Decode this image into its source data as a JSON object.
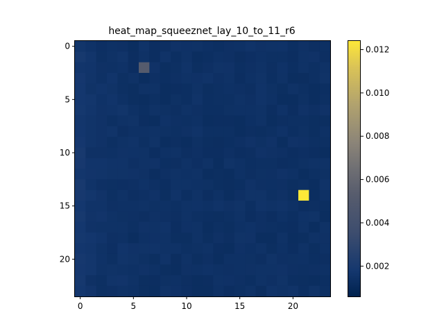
{
  "chart_data": {
    "type": "heatmap",
    "title": "heat_map_squeeznet_lay_10_to_11_r6",
    "xlabel": "",
    "ylabel": "",
    "rows": 24,
    "cols": 24,
    "x_ticks": [
      0,
      5,
      10,
      15,
      20
    ],
    "y_ticks": [
      0,
      5,
      10,
      15,
      20
    ],
    "colormap": "cividis",
    "colorbar": {
      "min": 0.0006,
      "max": 0.0124,
      "ticks": [
        "0.002",
        "0.004",
        "0.006",
        "0.008",
        "0.010",
        "0.012"
      ],
      "tick_values": [
        0.002,
        0.004,
        0.006,
        0.008,
        0.01,
        0.012
      ]
    },
    "baseline_value": 0.0014,
    "column_offsets": [
      0.0004,
      0.0002,
      0.0001,
      0.0001,
      0.0001,
      0,
      0,
      0,
      0,
      0,
      0,
      0,
      0,
      0,
      0,
      0,
      0,
      0,
      0,
      0,
      0,
      0,
      0,
      0
    ],
    "highlights": [
      {
        "row": 2,
        "col": 6,
        "value": 0.0052
      },
      {
        "row": 14,
        "col": 21,
        "value": 0.0124
      }
    ],
    "grid": false
  }
}
